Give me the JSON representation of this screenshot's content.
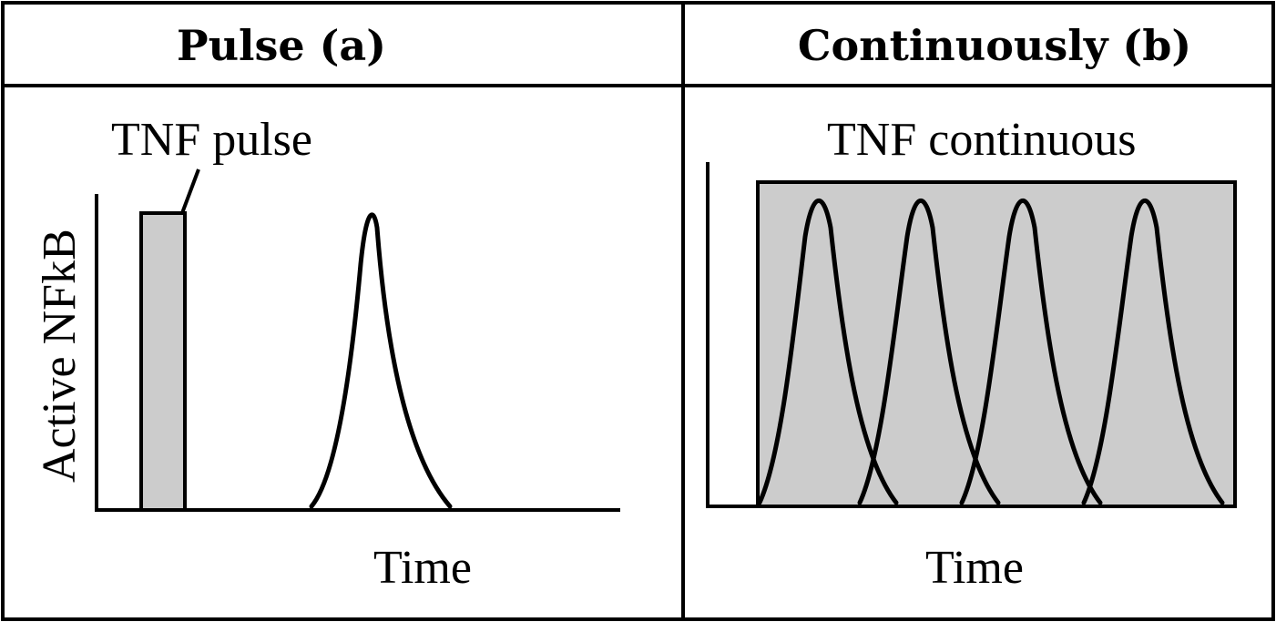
{
  "colors": {
    "stroke": "#000000",
    "background": "#ffffff",
    "tnf_fill": "#cccccc"
  },
  "panels": {
    "a": {
      "header": "Pulse (a)",
      "tnf_label": "TNF pulse",
      "y_label": "Active NFkB",
      "x_label": "Time",
      "nfkb_peak_count": 1
    },
    "b": {
      "header": "Continuously (b)",
      "tnf_label": "TNF continuous",
      "x_label": "Time",
      "nfkb_peak_count": 4
    }
  }
}
